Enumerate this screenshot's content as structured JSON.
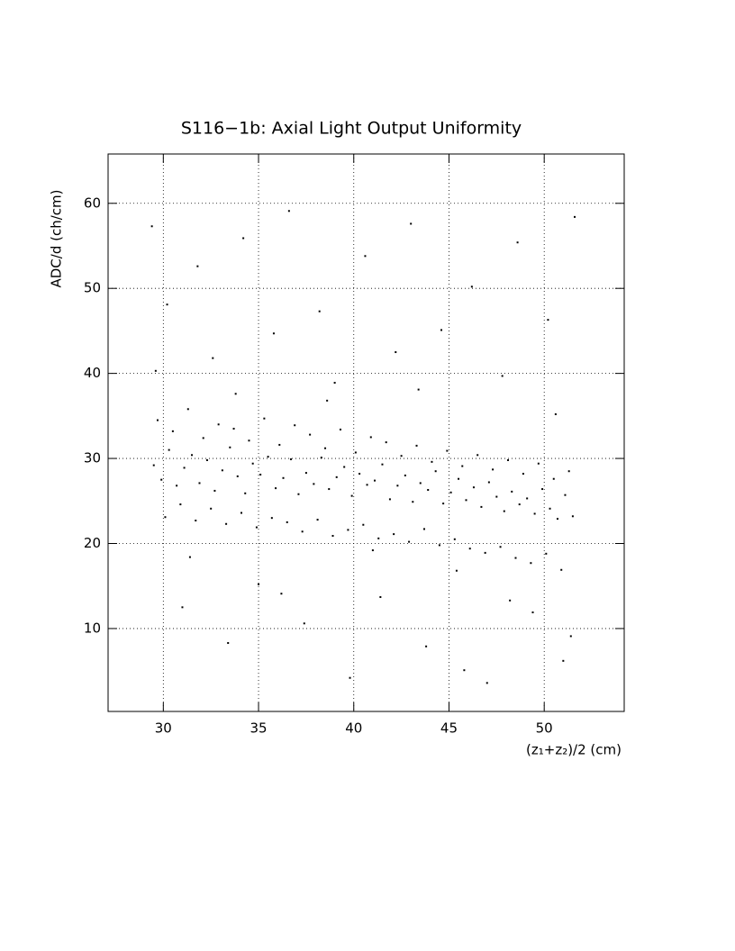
{
  "chart_data": {
    "type": "scatter",
    "title": "S116−1b: Axial Light Output Uniformity",
    "x_label": "(z₁+z₂)/2 (cm)",
    "y_label": "ADC/d (ch/cm)",
    "color": "#000000",
    "grid": true,
    "xlim": [
      27.1,
      54.2
    ],
    "ylim": [
      0.25,
      65.8
    ],
    "xticks": [
      30,
      35,
      40,
      45,
      50
    ],
    "yticks": [
      10,
      20,
      30,
      40,
      50,
      60
    ],
    "x": [
      29.5,
      29.9,
      30.3,
      30.7,
      31.1,
      31.5,
      31.9,
      32.3,
      32.7,
      33.1,
      33.5,
      33.9,
      34.3,
      34.7,
      35.1,
      35.5,
      35.9,
      36.3,
      36.7,
      37.1,
      37.5,
      37.9,
      38.3,
      38.7,
      39.1,
      39.5,
      39.9,
      40.3,
      40.7,
      41.1,
      41.5,
      41.9,
      42.3,
      42.7,
      43.1,
      43.5,
      43.9,
      44.3,
      44.7,
      45.1,
      45.5,
      45.9,
      46.3,
      46.7,
      47.1,
      47.5,
      47.9,
      48.3,
      48.7,
      49.1,
      49.5,
      49.9,
      50.3,
      50.7,
      51.1,
      51.5,
      29.7,
      30.1,
      30.5,
      30.9,
      31.3,
      31.7,
      32.1,
      32.5,
      32.9,
      33.3,
      33.7,
      34.1,
      34.5,
      34.9,
      35.3,
      35.7,
      36.1,
      36.5,
      36.9,
      37.3,
      37.7,
      38.1,
      38.5,
      38.9,
      39.3,
      39.7,
      40.1,
      40.5,
      40.9,
      41.3,
      41.7,
      42.1,
      42.5,
      42.9,
      43.3,
      43.7,
      44.1,
      44.5,
      44.9,
      45.3,
      45.7,
      46.1,
      46.5,
      46.9,
      47.3,
      47.7,
      48.1,
      48.5,
      48.9,
      49.3,
      49.7,
      50.1,
      50.5,
      50.9,
      51.3,
      29.4,
      30.2,
      31.0,
      31.8,
      32.6,
      33.4,
      34.2,
      35.0,
      35.8,
      36.6,
      37.4,
      38.2,
      39.0,
      39.8,
      40.6,
      41.4,
      42.2,
      43.0,
      43.8,
      44.6,
      45.4,
      46.2,
      47.0,
      47.8,
      48.6,
      49.4,
      50.2,
      51.0,
      51.6,
      29.6,
      31.4,
      33.8,
      36.2,
      38.6,
      41.0,
      43.4,
      45.8,
      48.2,
      50.6,
      51.4
    ],
    "values": [
      29.2,
      27.5,
      31.0,
      26.8,
      28.9,
      30.4,
      27.1,
      29.8,
      26.2,
      28.6,
      31.3,
      27.9,
      25.9,
      29.4,
      28.1,
      30.2,
      26.5,
      27.7,
      29.9,
      25.8,
      28.3,
      27.0,
      30.1,
      26.4,
      27.8,
      29.0,
      25.6,
      28.2,
      26.9,
      27.4,
      29.3,
      25.2,
      26.8,
      28.0,
      24.9,
      27.1,
      26.3,
      28.5,
      24.7,
      26.0,
      27.6,
      25.1,
      26.6,
      24.3,
      27.2,
      25.5,
      23.8,
      26.1,
      24.6,
      25.3,
      23.5,
      26.4,
      24.1,
      22.9,
      25.7,
      23.2,
      34.5,
      23.1,
      33.2,
      24.6,
      35.8,
      22.7,
      32.4,
      24.1,
      34.0,
      22.3,
      33.5,
      23.6,
      32.1,
      21.9,
      34.7,
      23.0,
      31.6,
      22.5,
      33.9,
      21.4,
      32.8,
      22.8,
      31.2,
      20.9,
      33.4,
      21.6,
      30.7,
      22.2,
      32.5,
      20.6,
      31.9,
      21.1,
      30.3,
      20.2,
      31.5,
      21.7,
      29.6,
      19.8,
      30.9,
      20.5,
      29.1,
      19.4,
      30.4,
      18.9,
      28.7,
      19.6,
      29.8,
      18.3,
      28.2,
      17.7,
      29.4,
      18.8,
      27.6,
      16.9,
      28.5,
      57.3,
      48.1,
      12.5,
      52.6,
      41.8,
      8.3,
      55.9,
      15.2,
      44.7,
      59.1,
      10.6,
      47.3,
      38.9,
      4.2,
      53.8,
      13.7,
      42.5,
      57.6,
      7.9,
      45.1,
      16.8,
      50.2,
      3.6,
      39.7,
      55.4,
      11.9,
      46.3,
      6.2,
      58.4,
      40.3,
      18.4,
      37.6,
      14.1,
      36.8,
      19.2,
      38.1,
      5.1,
      13.3,
      35.2,
      9.1
    ]
  }
}
